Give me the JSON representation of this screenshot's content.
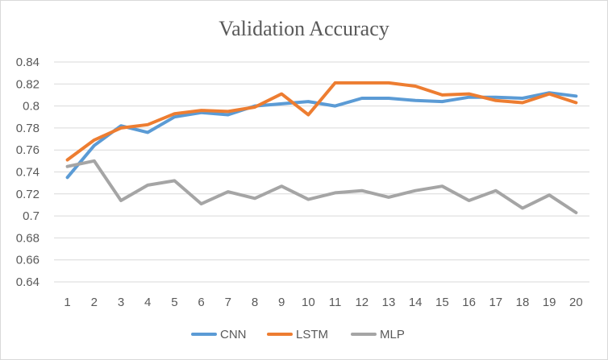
{
  "chart_data": {
    "type": "line",
    "title": "Validation Accuracy",
    "xlabel": "",
    "ylabel": "",
    "x": [
      "1",
      "2",
      "3",
      "4",
      "5",
      "6",
      "7",
      "8",
      "9",
      "10",
      "11",
      "12",
      "13",
      "14",
      "15",
      "16",
      "17",
      "18",
      "19",
      "20"
    ],
    "ylim": [
      0.64,
      0.84
    ],
    "yticks": [
      "0.64",
      "0.66",
      "0.68",
      "0.7",
      "0.72",
      "0.74",
      "0.76",
      "0.78",
      "0.8",
      "0.82",
      "0.84"
    ],
    "grid": "horizontal",
    "legend_position": "bottom",
    "series": [
      {
        "name": "CNN",
        "color": "#5b9bd5",
        "values": [
          0.735,
          0.764,
          0.782,
          0.776,
          0.79,
          0.794,
          0.792,
          0.8,
          0.802,
          0.804,
          0.8,
          0.807,
          0.807,
          0.805,
          0.804,
          0.808,
          0.808,
          0.807,
          0.812,
          0.809
        ]
      },
      {
        "name": "LSTM",
        "color": "#ed7d31",
        "values": [
          0.751,
          0.769,
          0.78,
          0.783,
          0.793,
          0.796,
          0.795,
          0.799,
          0.811,
          0.792,
          0.821,
          0.821,
          0.821,
          0.818,
          0.81,
          0.811,
          0.805,
          0.803,
          0.811,
          0.803
        ]
      },
      {
        "name": "MLP",
        "color": "#a5a5a5",
        "values": [
          0.745,
          0.75,
          0.714,
          0.728,
          0.732,
          0.711,
          0.722,
          0.716,
          0.727,
          0.715,
          0.721,
          0.723,
          0.717,
          0.723,
          0.727,
          0.714,
          0.723,
          0.707,
          0.719,
          0.703
        ]
      }
    ]
  }
}
